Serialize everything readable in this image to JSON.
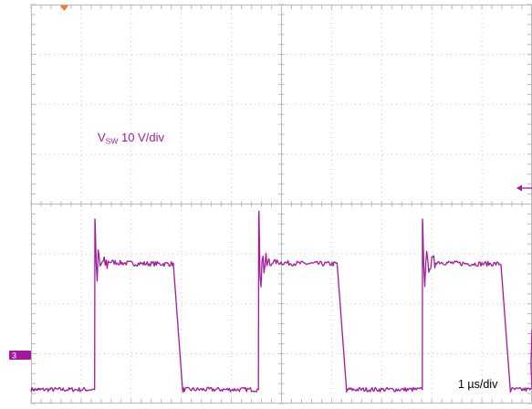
{
  "chart_data": {
    "type": "line",
    "title": "",
    "grid": true,
    "divisions": {
      "x": 10,
      "y": 8
    },
    "trace": {
      "channel": "3",
      "color": "#a4199c",
      "label_main": "V",
      "label_sub": "SW",
      "label_scale": " 10 V/div",
      "ylim_div": [
        0,
        8
      ],
      "high_level_div": 2.8,
      "low_level_div": 0.28,
      "overshoot_div": 0.9,
      "period_div": 3.27,
      "rise_times_div": [
        1.27,
        4.54,
        7.81
      ],
      "fall_start_div": 2.85,
      "fall_duration_div": 0.18
    },
    "time_scale_label": "1 µs/div",
    "markers": {
      "trigger_color": "#f07a2a",
      "channel_marker_label": "3"
    }
  }
}
